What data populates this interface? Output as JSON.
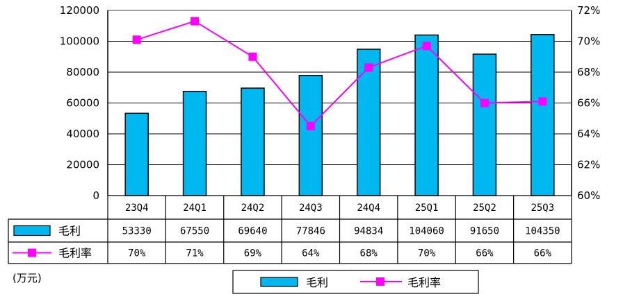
{
  "chart_data": {
    "type": "bar",
    "categories": [
      "23Q4",
      "24Q1",
      "24Q2",
      "24Q3",
      "24Q4",
      "25Q1",
      "25Q2",
      "25Q3"
    ],
    "series": [
      {
        "name": "毛利",
        "type": "bar",
        "axis": "left",
        "values": [
          53330,
          67550,
          69640,
          77846,
          94834,
          104060,
          91650,
          104350
        ],
        "color": "#00B8F0"
      },
      {
        "name": "毛利率",
        "type": "line",
        "axis": "right",
        "values": [
          70.1,
          71.3,
          69.0,
          64.5,
          68.3,
          69.7,
          66.0,
          66.1
        ],
        "color": "#FF00FF"
      }
    ],
    "table_rows": [
      {
        "label": "毛利",
        "cells": [
          "53330",
          "67550",
          "69640",
          "77846",
          "94834",
          "104060",
          "91650",
          "104350"
        ]
      },
      {
        "label": "毛利率",
        "cells": [
          "70%",
          "71%",
          "69%",
          "64%",
          "68%",
          "70%",
          "66%",
          "66%"
        ]
      }
    ],
    "ylim": [
      0,
      120000
    ],
    "y_ticks": [
      "0",
      "20000",
      "40000",
      "60000",
      "80000",
      "100000",
      "120000"
    ],
    "y2lim": [
      60,
      72
    ],
    "y2_ticks": [
      "60%",
      "62%",
      "64%",
      "66%",
      "68%",
      "70%",
      "72%"
    ],
    "unit_label": "(万元)",
    "legend": [
      "毛利",
      "毛利率"
    ],
    "legend_position": "bottom",
    "grid": true
  }
}
